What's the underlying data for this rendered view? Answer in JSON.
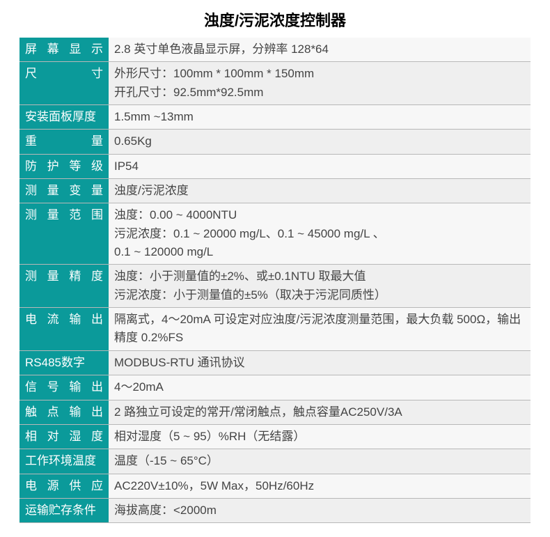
{
  "title": "浊度/污泥浓度控制器",
  "title_fontsize": 22,
  "colors": {
    "label_bg": "#0b9a9a",
    "label_text": "#ffffff",
    "value_bg_odd": "#f7f7f7",
    "value_bg_even": "#efefef",
    "value_text": "#444444",
    "divider": "#b8b8b8"
  },
  "font_family": "Microsoft YaHei",
  "body_fontsize": 17,
  "label_justified": true,
  "rows": [
    {
      "label": "屏幕显示",
      "value": "2.8 英寸单色液晶显示屏，分辨率 128*64"
    },
    {
      "label": "尺寸",
      "value": "外形尺寸：100mm * 100mm * 150mm\n开孔尺寸：92.5mm*92.5mm"
    },
    {
      "label": "安装面板厚度",
      "value": "1.5mm ~13mm"
    },
    {
      "label": "重量",
      "value": "0.65Kg"
    },
    {
      "label": "防护等级",
      "value": "IP54"
    },
    {
      "label": "测量变量",
      "value": "浊度/污泥浓度"
    },
    {
      "label": "测量范围",
      "value": "浊度：0.00 ~ 4000NTU\n污泥浓度：0.1 ~ 20000 mg/L、0.1 ~ 45000 mg/L 、\n0.1 ~ 120000 mg/L"
    },
    {
      "label": "测量精度",
      "value": "浊度：小于测量值的±2%、或±0.1NTU 取最大值\n污泥浓度：小于测量值的±5%（取决于污泥同质性）"
    },
    {
      "label": "电流输出",
      "value": "隔离式，4～20mA 可设定对应浊度/污泥浓度测量范围，最大负载 500Ω，输出精度 0.2%FS"
    },
    {
      "label": "RS485数字",
      "value": "MODBUS-RTU 通讯协议"
    },
    {
      "label": "信号输出",
      "value": "4～20mA"
    },
    {
      "label": "触点输出",
      "value": "2 路独立可设定的常开/常闭触点，触点容量AC250V/3A"
    },
    {
      "label": "相对湿度",
      "value": "相对湿度（5 ~ 95）%RH（无结露）"
    },
    {
      "label": "工作环境温度",
      "value": "温度（-15 ~ 65°C）"
    },
    {
      "label": "电源供应",
      "value": "AC220V±10%，5W Max，50Hz/60Hz"
    },
    {
      "label": "运输贮存条件",
      "value": "海拔高度：<2000m"
    }
  ]
}
